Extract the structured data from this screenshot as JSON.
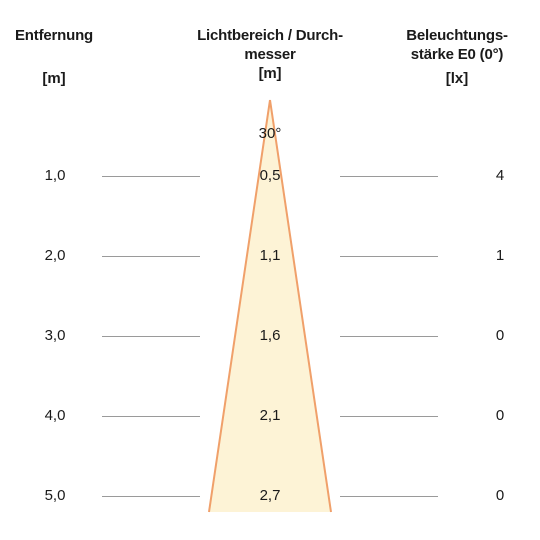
{
  "headers": {
    "distance": {
      "title": "Entfernung",
      "unit": "[m]"
    },
    "diameter": {
      "title_line1": "Lichtbereich / Durch-",
      "title_line2": "messer",
      "unit": "[m]"
    },
    "illuminance": {
      "title_line1": "Beleuchtungs-",
      "title_line2": "stärke E0 (0°)",
      "unit": "[lx]"
    }
  },
  "beam_angle": "30°",
  "rows": [
    {
      "distance": "1,0",
      "diameter": "0,5",
      "illuminance": "4"
    },
    {
      "distance": "2,0",
      "diameter": "1,1",
      "illuminance": "1"
    },
    {
      "distance": "3,0",
      "diameter": "1,6",
      "illuminance": "0"
    },
    {
      "distance": "4,0",
      "diameter": "2,1",
      "illuminance": "0"
    },
    {
      "distance": "5,0",
      "diameter": "2,7",
      "illuminance": "0"
    }
  ],
  "colors": {
    "cone_fill": "#fdf3d6",
    "cone_edge": "#f0a06a",
    "guide_line": "#9a9a9a"
  }
}
